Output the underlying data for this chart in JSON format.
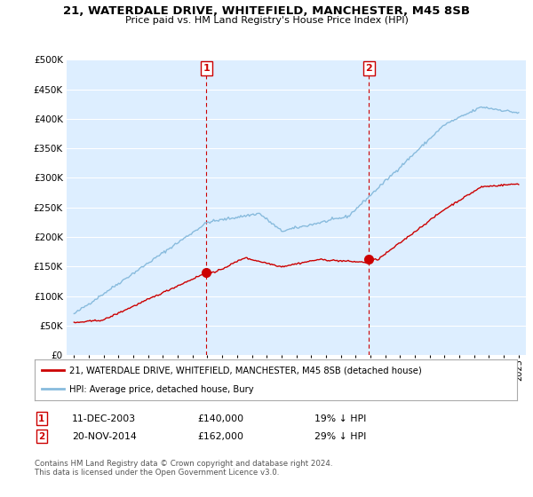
{
  "title": "21, WATERDALE DRIVE, WHITEFIELD, MANCHESTER, M45 8SB",
  "subtitle": "Price paid vs. HM Land Registry's House Price Index (HPI)",
  "legend_line1": "21, WATERDALE DRIVE, WHITEFIELD, MANCHESTER, M45 8SB (detached house)",
  "legend_line2": "HPI: Average price, detached house, Bury",
  "annotation1_date": "11-DEC-2003",
  "annotation1_price": "£140,000",
  "annotation1_hpi": "19% ↓ HPI",
  "annotation2_date": "20-NOV-2014",
  "annotation2_price": "£162,000",
  "annotation2_hpi": "29% ↓ HPI",
  "footer": "Contains HM Land Registry data © Crown copyright and database right 2024.\nThis data is licensed under the Open Government Licence v3.0.",
  "red_color": "#cc0000",
  "blue_color": "#88bbdd",
  "vline_color": "#cc0000",
  "annotation_box_color": "#cc0000",
  "plot_bg_color": "#ddeeff",
  "grid_color": "#ffffff",
  "ylim": [
    0,
    500000
  ],
  "yticks": [
    0,
    50000,
    100000,
    150000,
    200000,
    250000,
    300000,
    350000,
    400000,
    450000,
    500000
  ],
  "marker1_x": 2003.94,
  "marker1_y": 140000,
  "marker2_x": 2014.89,
  "marker2_y": 162000,
  "xlim_left": 1994.5,
  "xlim_right": 2025.5
}
